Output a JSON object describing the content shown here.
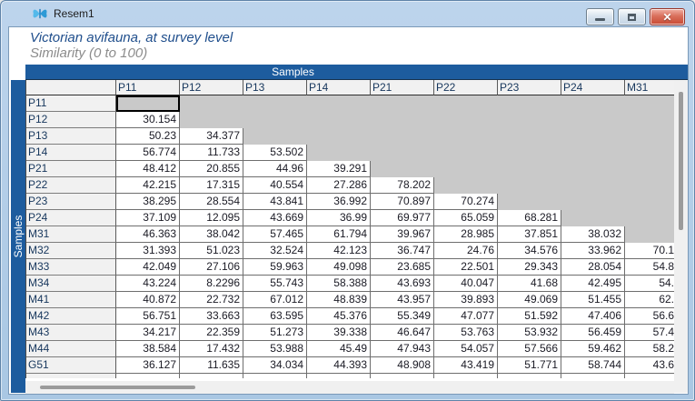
{
  "window": {
    "title": "Resem1",
    "controls": {
      "minimize": "minimize",
      "maximize": "maximize",
      "close": "close"
    }
  },
  "header": {
    "title": "Victorian avifauna, at survey level",
    "subtitle": "Similarity (0 to 100)"
  },
  "grid": {
    "axis_label_top": "Samples",
    "axis_label_left": "Samples",
    "columns": [
      "P11",
      "P12",
      "P13",
      "P14",
      "P21",
      "P22",
      "P23",
      "P24",
      "M31"
    ],
    "rows": [
      {
        "label": "P11",
        "values": [],
        "selected_diagonal": true
      },
      {
        "label": "P12",
        "values": [
          "30.154"
        ]
      },
      {
        "label": "P13",
        "values": [
          "50.23",
          "34.377"
        ]
      },
      {
        "label": "P14",
        "values": [
          "56.774",
          "11.733",
          "53.502"
        ]
      },
      {
        "label": "P21",
        "values": [
          "48.412",
          "20.855",
          "44.96",
          "39.291"
        ]
      },
      {
        "label": "P22",
        "values": [
          "42.215",
          "17.315",
          "40.554",
          "27.286",
          "78.202"
        ]
      },
      {
        "label": "P23",
        "values": [
          "38.295",
          "28.554",
          "43.841",
          "36.992",
          "70.897",
          "70.274"
        ]
      },
      {
        "label": "P24",
        "values": [
          "37.109",
          "12.095",
          "43.669",
          "36.99",
          "69.977",
          "65.059",
          "68.281"
        ]
      },
      {
        "label": "M31",
        "values": [
          "46.363",
          "38.042",
          "57.465",
          "61.794",
          "39.967",
          "28.985",
          "37.851",
          "38.032"
        ]
      },
      {
        "label": "M32",
        "values": [
          "31.393",
          "51.023",
          "32.524",
          "42.123",
          "36.747",
          "24.76",
          "34.576",
          "33.962",
          "70.1"
        ]
      },
      {
        "label": "M33",
        "values": [
          "42.049",
          "27.106",
          "59.963",
          "49.098",
          "23.685",
          "22.501",
          "29.343",
          "28.054",
          "54.8"
        ]
      },
      {
        "label": "M34",
        "values": [
          "43.224",
          "8.2296",
          "55.743",
          "58.388",
          "43.693",
          "40.047",
          "41.68",
          "42.495",
          "54."
        ]
      },
      {
        "label": "M41",
        "values": [
          "40.872",
          "22.732",
          "67.012",
          "48.839",
          "43.957",
          "39.893",
          "49.069",
          "51.455",
          "62."
        ]
      },
      {
        "label": "M42",
        "values": [
          "56.751",
          "33.663",
          "63.595",
          "45.376",
          "55.349",
          "47.077",
          "51.592",
          "47.406",
          "56.6"
        ]
      },
      {
        "label": "M43",
        "values": [
          "34.217",
          "22.359",
          "51.273",
          "39.338",
          "46.647",
          "53.763",
          "53.932",
          "56.459",
          "57.4"
        ]
      },
      {
        "label": "M44",
        "values": [
          "38.584",
          "17.432",
          "53.988",
          "45.49",
          "47.943",
          "54.057",
          "57.566",
          "59.462",
          "58.2"
        ]
      },
      {
        "label": "G51",
        "values": [
          "36.127",
          "11.635",
          "34.034",
          "44.393",
          "48.908",
          "43.419",
          "51.771",
          "58.744",
          "43.6"
        ]
      }
    ],
    "has_partial_next_row": true
  },
  "colors": {
    "banner_blue": "#1d5c9e",
    "upper_triangle_gray": "#c9c9c9",
    "header_text_navy": "#16365c",
    "title_blue": "#1f4e8c",
    "subtitle_gray": "#8c8c8c",
    "close_button_red": "#c94a33"
  }
}
